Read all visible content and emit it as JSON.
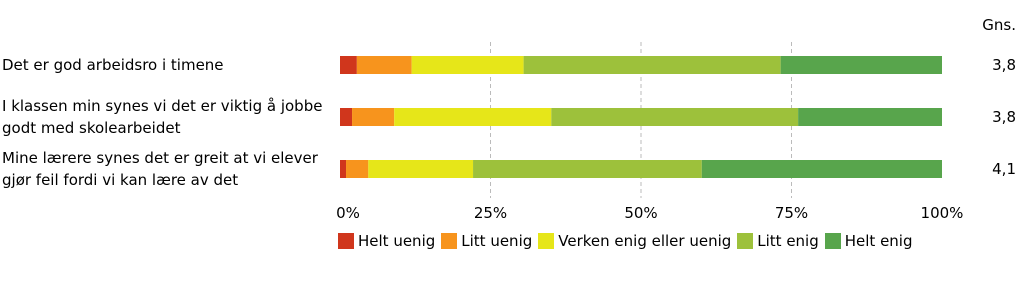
{
  "chart_data": {
    "type": "stacked-bar-horizontal",
    "categories": [
      "Det er god arbeidsro i timene",
      "I klassen min synes vi det er viktig å jobbe godt med skolearbeidet",
      "Mine lærere synes det er greit at vi elever gjør feil fordi vi kan lære av det"
    ],
    "series": [
      {
        "name": "Helt uenig",
        "color": "#d0361c",
        "values": [
          2.8,
          2.0,
          1.0
        ]
      },
      {
        "name": "Litt uenig",
        "color": "#f7941d",
        "values": [
          9.1,
          7.0,
          3.7
        ]
      },
      {
        "name": "Verken enig eller uenig",
        "color": "#e6e619",
        "values": [
          18.6,
          26.1,
          17.4
        ]
      },
      {
        "name": "Litt enig",
        "color": "#9dc13b",
        "values": [
          42.7,
          41.0,
          38.0
        ]
      },
      {
        "name": "Helt enig",
        "color": "#58a54c",
        "values": [
          26.8,
          23.9,
          39.9
        ]
      }
    ],
    "xlim": [
      0,
      100
    ],
    "xticks": [
      {
        "value": 0,
        "label": "0%"
      },
      {
        "value": 25,
        "label": "25%"
      },
      {
        "value": 50,
        "label": "50%"
      },
      {
        "value": 75,
        "label": "75%"
      },
      {
        "value": 100,
        "label": "100%"
      }
    ],
    "grid": true,
    "average_title": "Gns.",
    "average_labels": [
      "3,8",
      "3,8",
      "4,1"
    ]
  }
}
